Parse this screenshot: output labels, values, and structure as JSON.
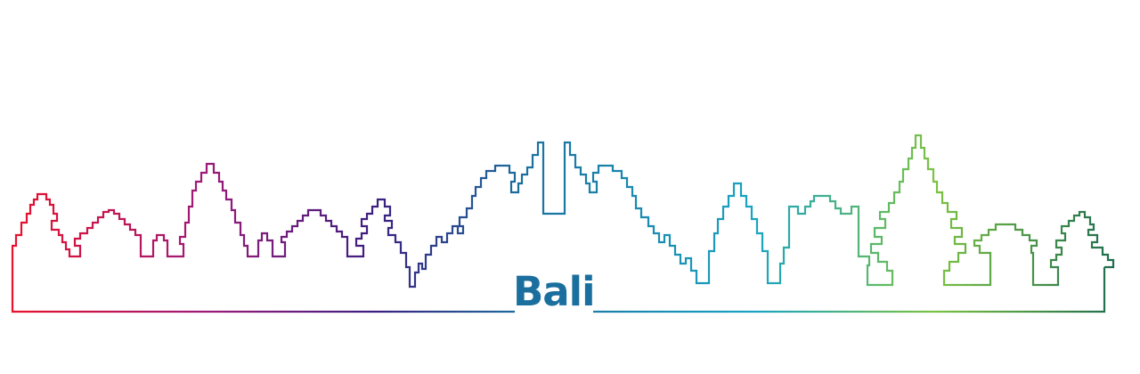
{
  "title": "Bali",
  "colors": {
    "title": "#1a6f9e",
    "gradient": [
      "#e8112d",
      "#9c1a78",
      "#3a1f80",
      "#1a6f9e",
      "#19a3c2",
      "#7cc242",
      "#1d6b4f"
    ]
  }
}
